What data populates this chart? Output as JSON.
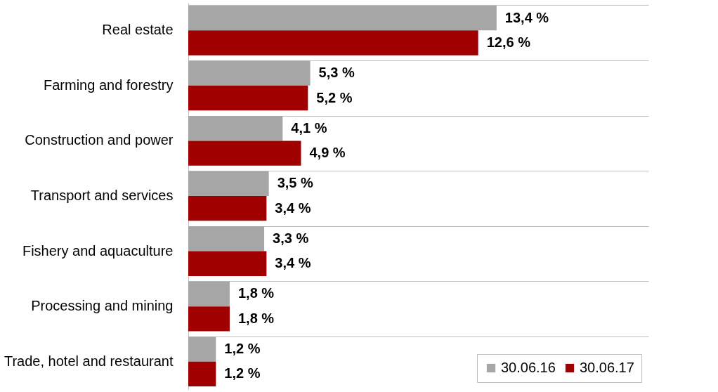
{
  "chart_data": {
    "type": "bar",
    "orientation": "horizontal",
    "categories": [
      "Real estate",
      "Farming and forestry",
      "Construction and power",
      "Transport and services",
      "Fishery and aquaculture",
      "Processing and mining",
      "Trade, hotel and restaurant"
    ],
    "series": [
      {
        "name": "30.06.16",
        "color": "#a6a6a6",
        "values": [
          13.4,
          5.3,
          4.1,
          3.5,
          3.3,
          1.8,
          1.2
        ],
        "value_labels": [
          "13,4 %",
          "5,3 %",
          "4,1 %",
          "3,5 %",
          "3,3 %",
          "1,8 %",
          "1,2 %"
        ]
      },
      {
        "name": "30.06.17",
        "color": "#a00000",
        "values": [
          12.6,
          5.2,
          4.9,
          3.4,
          3.4,
          1.8,
          1.2
        ],
        "value_labels": [
          "12,6 %",
          "5,2 %",
          "4,9 %",
          "3,4 %",
          "3,4 %",
          "1,8 %",
          "1,2 %"
        ]
      }
    ],
    "xlim": [
      0,
      20
    ],
    "grid": "y",
    "legend": "bottom right",
    "tick_labels": "y"
  }
}
